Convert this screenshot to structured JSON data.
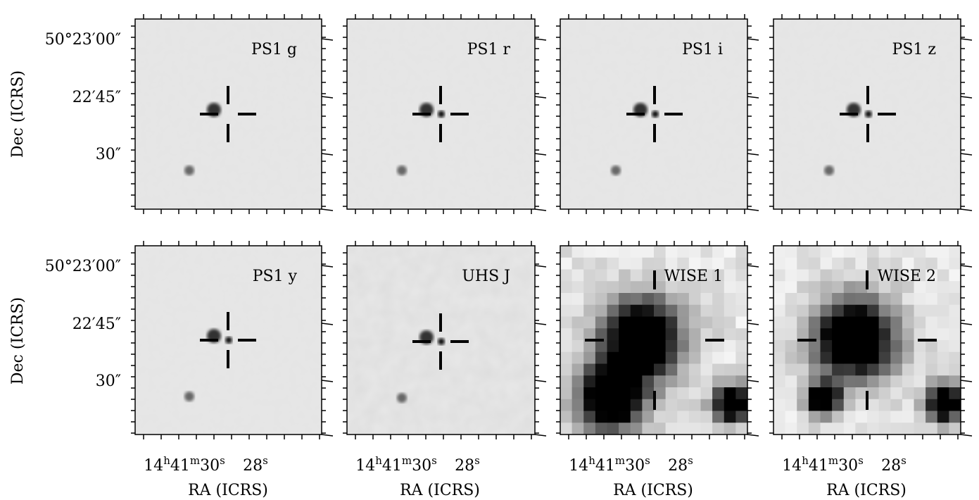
{
  "figure": {
    "panels": [
      {
        "label": "PS1 g"
      },
      {
        "label": "PS1 r"
      },
      {
        "label": "PS1 i"
      },
      {
        "label": "PS1 z"
      },
      {
        "label": "PS1 y"
      },
      {
        "label": "UHS J"
      },
      {
        "label": "WISE 1"
      },
      {
        "label": "WISE 2"
      }
    ],
    "y_label": "Dec (ICRS)",
    "x_label": "RA (ICRS)",
    "dec_ticks": [
      "50°23′00″",
      "22′45″",
      "30″"
    ],
    "ra_ticks": [
      {
        "parts": [
          "14",
          "h",
          "41",
          "m",
          "30",
          "s"
        ]
      },
      {
        "parts": [
          "28",
          "s"
        ]
      }
    ]
  }
}
